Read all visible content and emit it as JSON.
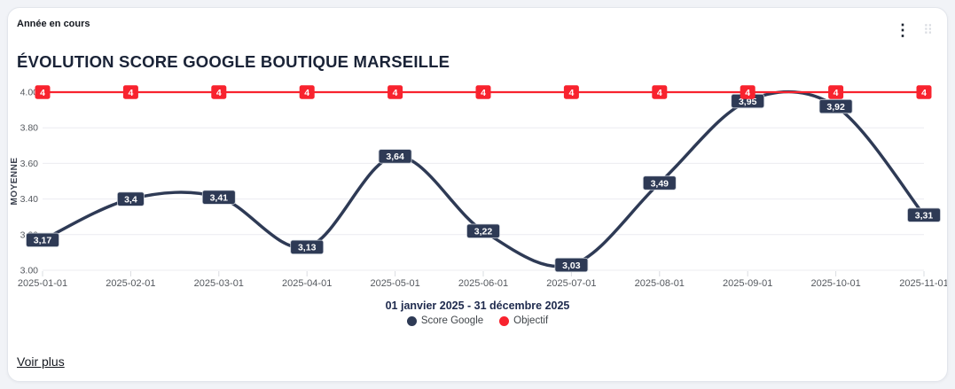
{
  "header": {
    "period_label": "Année en cours",
    "menu_icon_glyph": "⋮",
    "drag_icon_glyph": "⠿"
  },
  "title": "ÉVOLUTION SCORE GOOGLE BOUTIQUE MARSEILLE",
  "footer": {
    "link_label": "Voir plus"
  },
  "chart_data": {
    "type": "line",
    "title": "ÉVOLUTION SCORE GOOGLE BOUTIQUE MARSEILLE",
    "subtitle": "01 janvier 2025 - 31 décembre 2025",
    "ylabel": "MOYENNE",
    "ylim": [
      3.0,
      4.0
    ],
    "yticks": [
      4.0,
      3.8,
      3.6,
      3.4,
      3.2,
      3.0
    ],
    "ytick_labels": [
      "4.00",
      "3.80",
      "3.60",
      "3.40",
      "3.20",
      "3.00"
    ],
    "x": [
      "2025-01-01",
      "2025-02-01",
      "2025-03-01",
      "2025-04-01",
      "2025-05-01",
      "2025-06-01",
      "2025-07-01",
      "2025-08-01",
      "2025-09-01",
      "2025-10-01",
      "2025-11-01"
    ],
    "series": [
      {
        "name": "Score Google",
        "color": "#2e3a55",
        "curve": "smooth",
        "values": [
          3.17,
          3.4,
          3.41,
          3.13,
          3.64,
          3.22,
          3.03,
          3.49,
          3.95,
          3.92,
          3.31
        ],
        "point_labels": [
          "3,17",
          "3,4",
          "3,41",
          "3,13",
          "3,64",
          "3,22",
          "3,03",
          "3,49",
          "3,95",
          "3,92",
          "3,31"
        ]
      },
      {
        "name": "Objectif",
        "color": "#f8232e",
        "curve": "straight",
        "values": [
          4,
          4,
          4,
          4,
          4,
          4,
          4,
          4,
          4,
          4,
          4
        ],
        "point_labels": [
          "4",
          "4",
          "4",
          "4",
          "4",
          "4",
          "4",
          "4",
          "4",
          "4",
          "4"
        ]
      }
    ],
    "legend": [
      {
        "label": "Score Google",
        "color": "#2e3a55"
      },
      {
        "label": "Objectif",
        "color": "#f8232e"
      }
    ],
    "grid": "horizontal-only",
    "legend_position": "bottom",
    "colors": {
      "gridline": "#ececf1",
      "tick_mark": "#dadce1",
      "tick_text": "#54585e",
      "ylabel_text": "#3c4250",
      "badge_border": "#ccd1d9",
      "badge_text": "#ffffff"
    }
  }
}
